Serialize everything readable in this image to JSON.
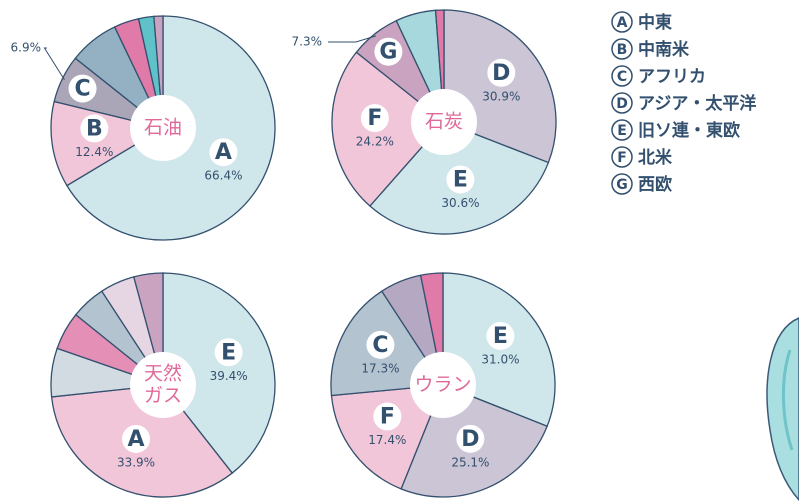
{
  "chart_data": [
    {
      "type": "pie",
      "center_label": [
        "石油"
      ],
      "labels": [
        "A",
        "B",
        "C",
        null,
        null,
        null,
        null
      ],
      "values": [
        66.4,
        12.4,
        6.9,
        7.2,
        3.6,
        2.2,
        1.3
      ],
      "value_labels": [
        "66.4%",
        "12.4%",
        "6.9%",
        null,
        null,
        null,
        null
      ],
      "colors": [
        "#cfe7eb",
        "#f2c6d9",
        "#aaa6b8",
        "#93b1c2",
        "#e07aa8",
        "#5fc2c9",
        "#c9a3c0"
      ]
    },
    {
      "type": "pie",
      "center_label": [
        "石炭"
      ],
      "labels": [
        "D",
        "E",
        "F",
        "G",
        null,
        null
      ],
      "values": [
        30.9,
        30.6,
        24.2,
        7.3,
        5.8,
        1.2
      ],
      "value_labels": [
        "30.9%",
        "30.6%",
        "24.2%",
        "7.3%",
        null,
        null
      ],
      "colors": [
        "#cbc5d5",
        "#cfe7eb",
        "#f2c6d9",
        "#c9a3c0",
        "#a6d8dd",
        "#e07aa8"
      ]
    },
    {
      "type": "pie",
      "center_label": [
        "天然",
        "ガス"
      ],
      "labels": [
        "E",
        "A",
        null,
        null,
        null,
        null,
        null
      ],
      "values": [
        39.4,
        33.9,
        7.0,
        5.5,
        5.0,
        5.0,
        4.2
      ],
      "value_labels": [
        "39.4%",
        "33.9%",
        null,
        null,
        null,
        null,
        null
      ],
      "colors": [
        "#cfe7eb",
        "#f2c6d9",
        "#d2dbe2",
        "#e48fb6",
        "#b3c3cf",
        "#e6d6e4",
        "#c9a3c0"
      ]
    },
    {
      "type": "pie",
      "center_label": [
        "ウラン"
      ],
      "labels": [
        "E",
        "D",
        "F",
        "C",
        null,
        null
      ],
      "values": [
        31.0,
        25.1,
        17.4,
        17.3,
        6.0,
        3.2
      ],
      "value_labels": [
        "31.0%",
        "25.1%",
        "17.4%",
        "17.3%",
        null,
        null
      ],
      "colors": [
        "#cfe7eb",
        "#cbc5d5",
        "#f2c6d9",
        "#b3c3cf",
        "#b5a8c2",
        "#e07aa8"
      ]
    }
  ],
  "legend": [
    {
      "key": "A",
      "name": "中東"
    },
    {
      "key": "B",
      "name": "中南米"
    },
    {
      "key": "C",
      "name": "アフリカ"
    },
    {
      "key": "D",
      "name": "アジア・太平洋"
    },
    {
      "key": "E",
      "name": "旧ソ連・東欧"
    },
    {
      "key": "F",
      "name": "北米"
    },
    {
      "key": "G",
      "name": "西欧"
    }
  ]
}
